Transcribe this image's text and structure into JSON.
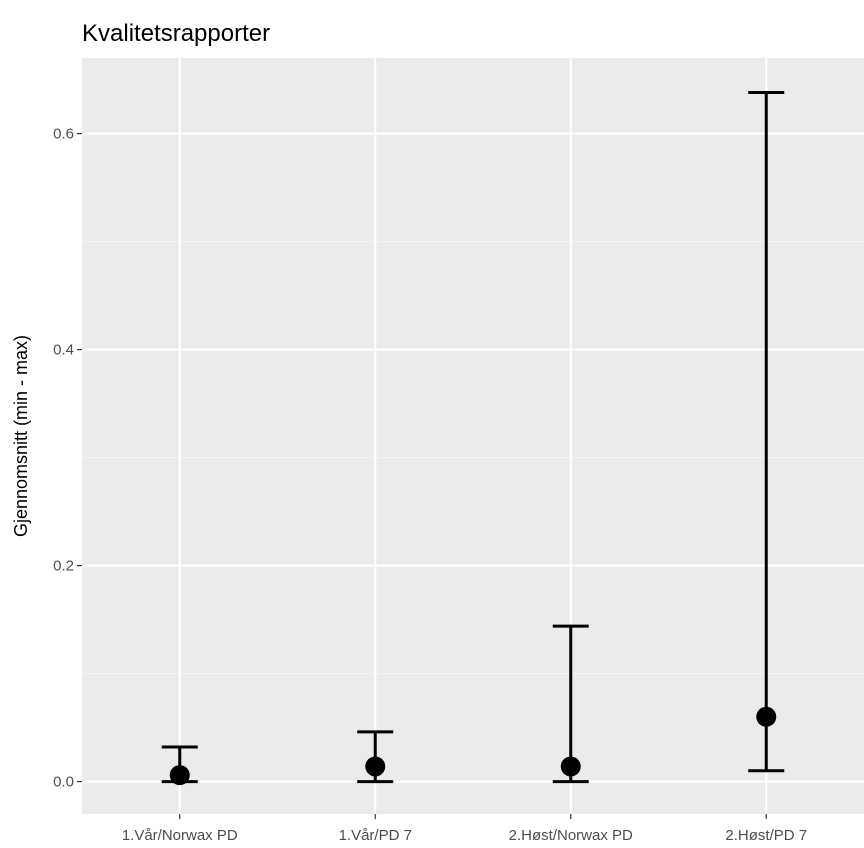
{
  "chart_data": {
    "type": "scatter",
    "subtype": "pointrange-errorbar",
    "title": "Kvalitetsrapporter",
    "xlabel": "",
    "ylabel": "Gjennomsnitt (min - max)",
    "categories": [
      "1.Vår/Norwax PD",
      "1.Vår/PD 7",
      "2.Høst/Norwax PD",
      "2.Høst/PD 7"
    ],
    "mean": [
      0.006,
      0.014,
      0.014,
      0.06
    ],
    "min": [
      0.0,
      0.0,
      0.0,
      0.01
    ],
    "max": [
      0.032,
      0.046,
      0.144,
      0.638
    ],
    "ylim": [
      -0.03,
      0.67
    ],
    "yticks": [
      0.0,
      0.2,
      0.4,
      0.6
    ],
    "ytick_labels": [
      "0.0",
      "0.2",
      "0.4",
      "0.6"
    ],
    "grid": true,
    "legend": "none",
    "colors": {
      "panel_background": "#ebebeb",
      "grid_major": "#ffffff",
      "grid_minor": "#f5f5f5",
      "marks": "#000000",
      "tick_label": "#4d4d4d",
      "tick_mark": "#333333"
    }
  }
}
